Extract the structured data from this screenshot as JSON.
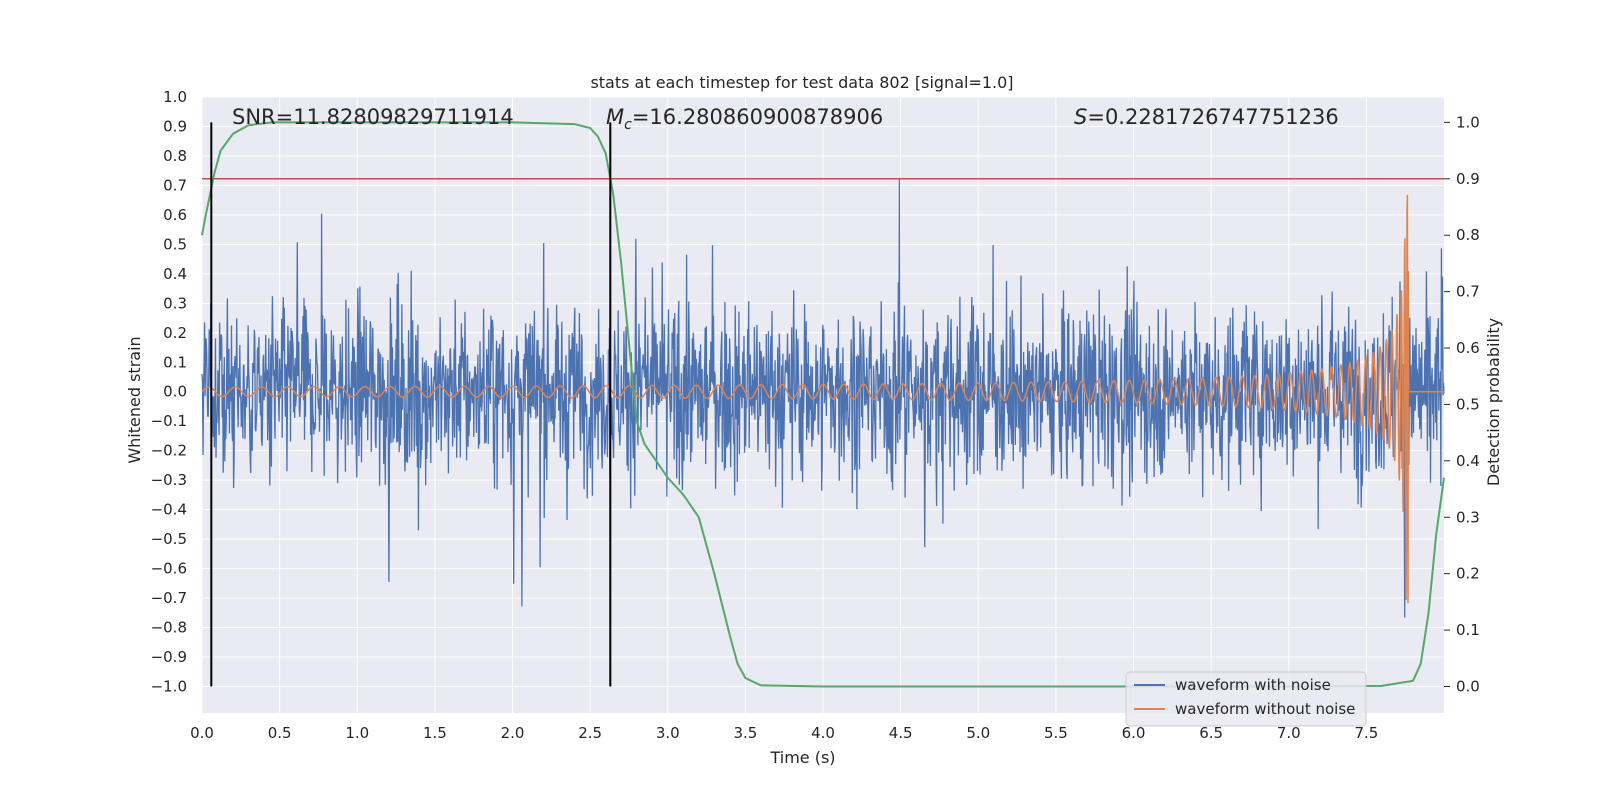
{
  "chart_data": {
    "type": "line",
    "title": "stats at each timestep for test data 802 [signal=1.0]",
    "xlabel": "Time (s)",
    "ylabel": "Whitened strain",
    "ylabel_right": "Detection probability",
    "xlim": [
      0,
      8
    ],
    "ylim": [
      -1.09,
      1.0
    ],
    "ylim_right": [
      -0.047,
      1.045
    ],
    "x_ticks": [
      "0.0",
      "0.5",
      "1.0",
      "1.5",
      "2.0",
      "2.5",
      "3.0",
      "3.5",
      "4.0",
      "4.5",
      "5.0",
      "5.5",
      "6.0",
      "6.5",
      "7.0",
      "7.5"
    ],
    "y_ticks": [
      "1.0",
      "0.9",
      "0.8",
      "0.7",
      "0.6",
      "0.5",
      "0.4",
      "0.3",
      "0.2",
      "0.1",
      "0.0",
      "−0.1",
      "−0.2",
      "−0.3",
      "−0.4",
      "−0.5",
      "−0.6",
      "−0.7",
      "−0.8",
      "−0.9",
      "−1.0"
    ],
    "y_ticks_right": [
      "1.0",
      "0.9",
      "0.8",
      "0.7",
      "0.6",
      "0.5",
      "0.4",
      "0.3",
      "0.2",
      "0.1",
      "0.0"
    ],
    "annotations": {
      "snr": "SNR=11.82809829711914",
      "mc_symbol": "M",
      "mc_sub": "c",
      "mc_value": "=16.280860900878906",
      "s_symbol": "S",
      "s_value": "=0.2281726747751236"
    },
    "vertical_lines_x": [
      0.06,
      2.63
    ],
    "threshold_line": {
      "axis": "right",
      "y": 0.9,
      "color": "#c44e52"
    },
    "series": [
      {
        "name": "waveform with noise",
        "color": "#4c72b0",
        "axis": "left",
        "description": "dense noise, |strain| mostly 0.2-0.6, peaks near 0.9"
      },
      {
        "name": "waveform without noise",
        "color": "#dd8452",
        "axis": "left",
        "description": "chirp growing from amplitude 0.02 at t=0 to 0.73 at merger t=7.77, zero afterwards"
      },
      {
        "name": "detection probability",
        "color": "#55a868",
        "axis": "right",
        "x": [
          0.0,
          0.02,
          0.05,
          0.08,
          0.12,
          0.2,
          0.3,
          0.45,
          1.0,
          2.0,
          2.4,
          2.5,
          2.55,
          2.6,
          2.65,
          2.7,
          2.75,
          2.8,
          2.85,
          2.9,
          3.0,
          3.1,
          3.2,
          3.3,
          3.4,
          3.45,
          3.5,
          3.6,
          4.0,
          7.0,
          7.6,
          7.8,
          7.85,
          7.9,
          7.95,
          8.0
        ],
        "y": [
          0.8,
          0.83,
          0.87,
          0.91,
          0.95,
          0.98,
          0.995,
          1.0,
          1.0,
          1.0,
          0.997,
          0.99,
          0.975,
          0.945,
          0.87,
          0.75,
          0.61,
          0.47,
          0.43,
          0.41,
          0.37,
          0.34,
          0.3,
          0.2,
          0.09,
          0.04,
          0.015,
          0.002,
          0.0,
          0.0,
          0.001,
          0.01,
          0.04,
          0.13,
          0.27,
          0.37
        ]
      }
    ],
    "legend": {
      "position": "bottom-right",
      "entries": [
        {
          "label": "waveform with noise",
          "color": "#4c72b0"
        },
        {
          "label": "waveform without noise",
          "color": "#dd8452"
        }
      ]
    },
    "grid": true
  }
}
